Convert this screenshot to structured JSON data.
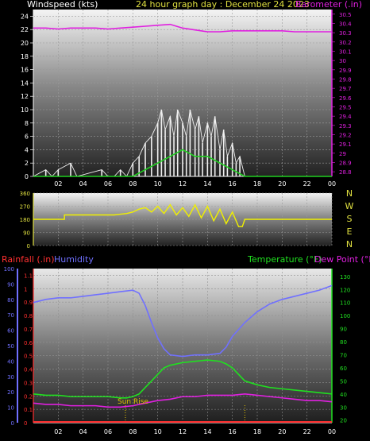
{
  "header": {
    "left_label": "Windspeed (kts)",
    "title": "24 hour graph day : December 24 2023",
    "right_label": "Barometer (.in)"
  },
  "colors": {
    "background": "#000000",
    "wind_gust": "#f0f0f0",
    "wind_avg": "#20d020",
    "barometer": "#e020e0",
    "direction": "#f0f000",
    "humidity": "#7070ff",
    "temperature": "#20e020",
    "dewpoint": "#e020e0",
    "rainfall": "#ff3030",
    "sunrise": "#e0c000"
  },
  "lower_header": {
    "rain_label": "Rainfall (.in)",
    "humidity_label": "Humidity",
    "temp_label": "Temperature (°F)",
    "dew_label": "Dew Point (°F)"
  },
  "annotations": {
    "sunrise_label": "Sun Rise"
  },
  "chart_data": [
    {
      "type": "line",
      "x_ticks": [
        "02",
        "04",
        "06",
        "08",
        "10",
        "12",
        "14",
        "16",
        "18",
        "20",
        "22",
        "00"
      ],
      "y_left_ticks": [
        "0",
        "2",
        "4",
        "6",
        "8",
        "10",
        "12",
        "14",
        "16",
        "18",
        "20",
        "22",
        "24"
      ],
      "y_right_ticks": [
        "28.8",
        "28.9",
        "29",
        "29.1",
        "29.2",
        "29.3",
        "29.4",
        "29.5",
        "29.6",
        "29.7",
        "29.8",
        "29.9",
        "30",
        "30.1",
        "30.2",
        "30.3",
        "30.4",
        "30.5"
      ],
      "ylim_left": [
        0,
        25
      ],
      "ylim_right": [
        28.75,
        30.55
      ],
      "xlim": [
        0,
        24
      ],
      "series": [
        {
          "name": "Windspeed (kts)",
          "role": "gust",
          "x": [
            0,
            1,
            1.5,
            2,
            3,
            3.5,
            5.5,
            6,
            6.5,
            7,
            7.5,
            8,
            8.5,
            9,
            9.5,
            10,
            10.3,
            10.6,
            11,
            11.3,
            11.6,
            12,
            12.3,
            12.6,
            13,
            13.3,
            13.6,
            14,
            14.3,
            14.6,
            15,
            15.3,
            15.6,
            16,
            16.3,
            16.6,
            17,
            24
          ],
          "values": [
            0,
            1,
            0,
            1,
            2,
            0,
            1,
            0,
            0,
            1,
            0,
            2,
            3,
            5,
            6,
            8,
            10,
            7,
            9,
            6,
            10,
            8,
            6,
            10,
            7,
            9,
            5,
            8,
            6,
            9,
            4,
            7,
            3,
            5,
            2,
            3,
            0,
            0
          ]
        },
        {
          "name": "Windspeed (kts)",
          "role": "average",
          "x": [
            0,
            8,
            9,
            10,
            11,
            12,
            13,
            14,
            15,
            16,
            17,
            24
          ],
          "values": [
            0,
            0,
            1,
            2,
            3,
            4,
            3,
            3,
            2,
            1,
            0,
            0
          ]
        },
        {
          "name": "Barometer (.in)",
          "x": [
            0,
            1,
            2,
            3,
            4,
            5,
            6,
            7,
            8,
            9,
            10,
            11,
            12,
            13,
            14,
            15,
            16,
            17,
            18,
            19,
            20,
            21,
            22,
            23,
            24
          ],
          "values": [
            30.35,
            30.35,
            30.34,
            30.35,
            30.35,
            30.35,
            30.34,
            30.35,
            30.36,
            30.37,
            30.38,
            30.39,
            30.35,
            30.33,
            30.31,
            30.31,
            30.32,
            30.32,
            30.32,
            30.32,
            30.32,
            30.31,
            30.31,
            30.31,
            30.31
          ]
        }
      ]
    },
    {
      "type": "line",
      "y_ticks": [
        "0",
        "90",
        "180",
        "270",
        "360"
      ],
      "ylim": [
        0,
        360
      ],
      "xlim": [
        0,
        24
      ],
      "compass_labels": [
        "N",
        "W",
        "S",
        "E",
        "N"
      ],
      "series": [
        {
          "name": "Wind Direction",
          "x": [
            0,
            2.5,
            2.5,
            6.5,
            7,
            7.5,
            8,
            8.5,
            9,
            9.5,
            10,
            10.5,
            11,
            11.5,
            12,
            12.5,
            13,
            13.5,
            14,
            14.5,
            15,
            15.5,
            16,
            16.5,
            16.8,
            17,
            24
          ],
          "values": [
            180,
            180,
            210,
            210,
            215,
            220,
            230,
            250,
            260,
            230,
            270,
            220,
            280,
            210,
            260,
            200,
            280,
            190,
            270,
            170,
            250,
            150,
            230,
            130,
            130,
            180,
            180
          ]
        }
      ]
    },
    {
      "type": "line",
      "x_ticks": [
        "02",
        "04",
        "06",
        "08",
        "10",
        "12",
        "14",
        "16",
        "18",
        "20",
        "22",
        "00"
      ],
      "y_left_ticks": [
        "0",
        "0.1",
        "0.2",
        "0.3",
        "0.4",
        "0.5",
        "0.6",
        "0.7",
        "0.8",
        "0.9",
        "1",
        "1.1"
      ],
      "y_humidity_ticks": [
        "0",
        "10",
        "20",
        "30",
        "40",
        "50",
        "60",
        "70",
        "80",
        "90",
        "100"
      ],
      "y_right_ticks": [
        "20",
        "30",
        "40",
        "50",
        "60",
        "70",
        "80",
        "90",
        "100",
        "110",
        "120",
        "130"
      ],
      "ylim_left": [
        0,
        1.15
      ],
      "ylim_humidity": [
        0,
        100
      ],
      "ylim_right": [
        18,
        136
      ],
      "xlim": [
        0,
        24
      ],
      "sunrise_hour": 7.4,
      "sunset_hour": 17.0,
      "series": [
        {
          "name": "Humidity",
          "x": [
            0,
            1,
            2,
            3,
            4,
            5,
            6,
            7,
            8,
            8.5,
            9,
            9.5,
            10,
            10.5,
            11,
            12,
            13,
            14,
            15,
            15.5,
            16,
            17,
            18,
            19,
            20,
            21,
            22,
            23,
            24
          ],
          "values": [
            78,
            80,
            81,
            81,
            82,
            83,
            84,
            85,
            86,
            84,
            76,
            65,
            55,
            48,
            44,
            43,
            44,
            44,
            45,
            49,
            56,
            65,
            72,
            77,
            80,
            82,
            84,
            86,
            89
          ]
        },
        {
          "name": "Temperature (°F)",
          "x": [
            0,
            1,
            2,
            3,
            4,
            5,
            6,
            7,
            7.5,
            8,
            8.5,
            9,
            9.5,
            10,
            10.5,
            11,
            12,
            13,
            14,
            15,
            15.5,
            16,
            16.5,
            17,
            18,
            19,
            20,
            21,
            22,
            23,
            24
          ],
          "values": [
            40,
            39,
            39,
            38,
            38,
            38,
            38,
            37,
            37,
            38,
            40,
            45,
            50,
            55,
            60,
            62,
            64,
            65,
            66,
            65,
            63,
            60,
            55,
            50,
            47,
            45,
            44,
            43,
            42,
            41,
            40
          ]
        },
        {
          "name": "Dew Point (°F)",
          "x": [
            0,
            1,
            2,
            3,
            4,
            5,
            6,
            7,
            8,
            9,
            10,
            11,
            12,
            13,
            14,
            15,
            16,
            17,
            18,
            19,
            20,
            21,
            22,
            23,
            24
          ],
          "values": [
            33,
            32,
            32,
            31,
            31,
            31,
            30,
            30,
            31,
            33,
            35,
            36,
            38,
            38,
            39,
            39,
            39,
            40,
            39,
            38,
            37,
            36,
            35,
            35,
            34
          ]
        },
        {
          "name": "Rainfall (.in)",
          "x": [
            0,
            24
          ],
          "values": [
            0,
            0
          ]
        }
      ]
    }
  ]
}
